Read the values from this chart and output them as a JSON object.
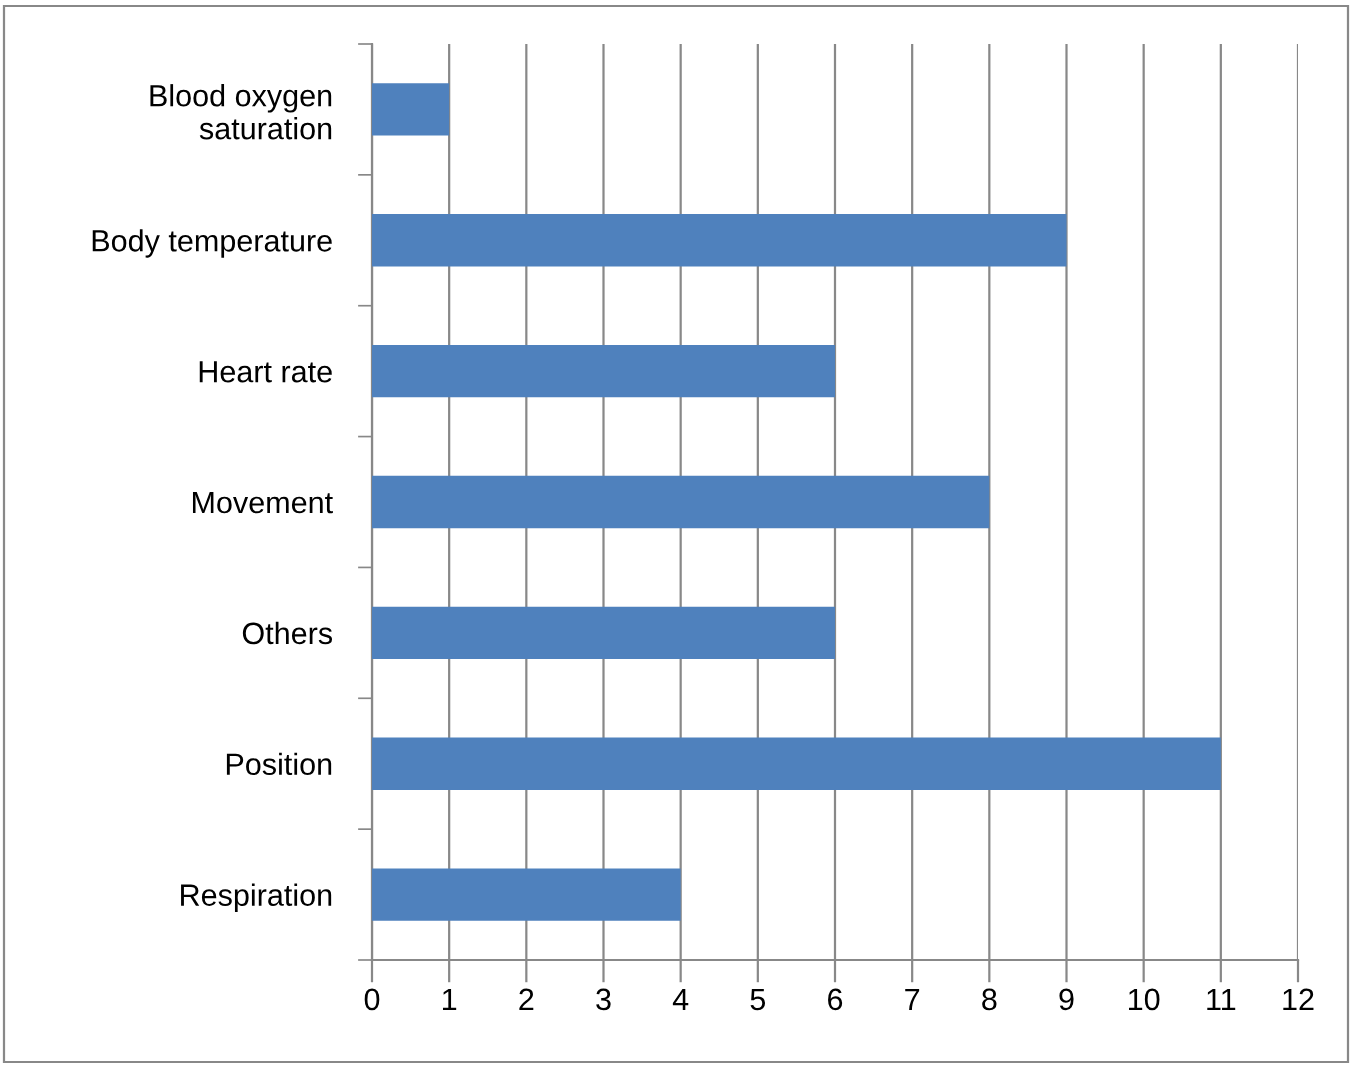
{
  "chart_data": {
    "type": "bar",
    "orientation": "horizontal",
    "categories": [
      "Blood oxygen\nsaturation",
      "Body temperature",
      "Heart rate",
      "Movement",
      "Others",
      "Position",
      "Respiration"
    ],
    "values": [
      1,
      9,
      6,
      8,
      6,
      11,
      4
    ],
    "color": "#4f81bd",
    "xlim": [
      0,
      12
    ],
    "xticks": [
      0,
      1,
      2,
      3,
      4,
      5,
      6,
      7,
      8,
      9,
      10,
      11,
      12
    ],
    "grid": "x",
    "legend": false
  }
}
